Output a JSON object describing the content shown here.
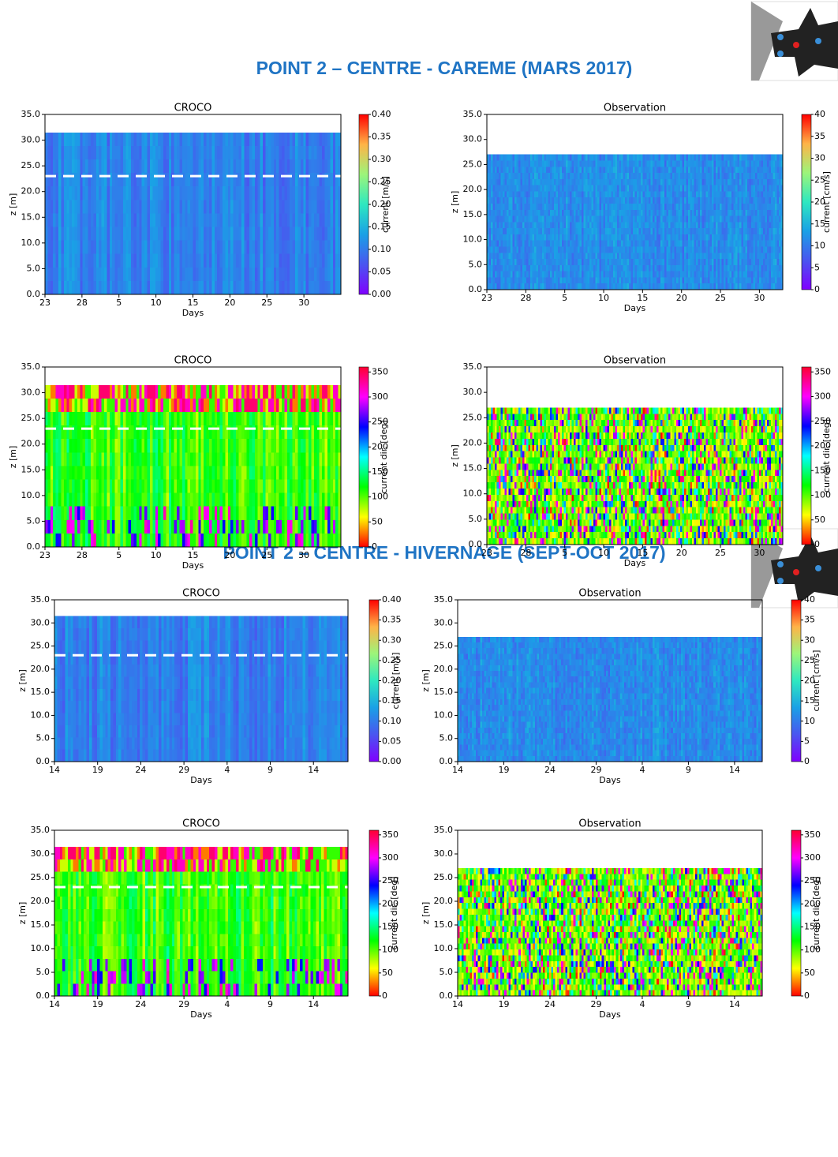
{
  "sections": [
    {
      "title": "POINT 2 – CENTRE - CAREME (MARS 2017)"
    },
    {
      "title": "POINT 2 – CENTRE - HIVERNAGE (SEPT-OCT 2017)"
    }
  ],
  "chart_data": [
    {
      "type": "heatmap",
      "title": "CROCO",
      "xlabel": "Days",
      "ylabel": "z [m]",
      "xlim": [
        0,
        40
      ],
      "xticks": [
        {
          "value": 0,
          "label": "23"
        },
        {
          "value": 5,
          "label": "28"
        },
        {
          "value": 10,
          "label": "5"
        },
        {
          "value": 15,
          "label": "10"
        },
        {
          "value": 20,
          "label": "15"
        },
        {
          "value": 25,
          "label": "20"
        },
        {
          "value": 30,
          "label": "25"
        },
        {
          "value": 35,
          "label": "30"
        }
      ],
      "ylim": [
        0,
        35
      ],
      "yticks": [
        {
          "value": 0,
          "label": "0.0"
        },
        {
          "value": 5,
          "label": "5.0"
        },
        {
          "value": 10,
          "label": "10.0"
        },
        {
          "value": 15,
          "label": "15.0"
        },
        {
          "value": 20,
          "label": "20.0"
        },
        {
          "value": 25,
          "label": "25.0"
        },
        {
          "value": 30,
          "label": "30.0"
        },
        {
          "value": 35,
          "label": "35.0"
        }
      ],
      "field_top": 31.5,
      "hline": 23,
      "colorbar_label": "current [m/s]",
      "clim": [
        0,
        0.4
      ],
      "cbar_ticks": [
        {
          "value": 0,
          "label": "0.00"
        },
        {
          "value": 0.05,
          "label": "0.05"
        },
        {
          "value": 0.1,
          "label": "0.10"
        },
        {
          "value": 0.15,
          "label": "0.15"
        },
        {
          "value": 0.2,
          "label": "0.20"
        },
        {
          "value": 0.25,
          "label": "0.25"
        },
        {
          "value": 0.3,
          "label": "0.30"
        },
        {
          "value": 0.35,
          "label": "0.35"
        },
        {
          "value": 0.4,
          "label": "0.40"
        }
      ],
      "field": "speed",
      "colormap": [
        "#8000ff",
        "#4a55f0",
        "#1aa0e6",
        "#2ee8c0",
        "#9cf57a",
        "#ffb347",
        "#ff0000"
      ]
    },
    {
      "type": "heatmap",
      "title": "Observation",
      "xlabel": "Days",
      "ylabel": "z [m]",
      "xlim": [
        0,
        38
      ],
      "xticks": [
        {
          "value": 0,
          "label": "23"
        },
        {
          "value": 5,
          "label": "28"
        },
        {
          "value": 10,
          "label": "5"
        },
        {
          "value": 15,
          "label": "10"
        },
        {
          "value": 20,
          "label": "15"
        },
        {
          "value": 25,
          "label": "20"
        },
        {
          "value": 30,
          "label": "25"
        },
        {
          "value": 35,
          "label": "30"
        }
      ],
      "ylim": [
        0,
        35
      ],
      "yticks": [
        {
          "value": 0,
          "label": "0.0"
        },
        {
          "value": 5,
          "label": "5.0"
        },
        {
          "value": 10,
          "label": "10.0"
        },
        {
          "value": 15,
          "label": "15.0"
        },
        {
          "value": 20,
          "label": "20.0"
        },
        {
          "value": 25,
          "label": "25.0"
        },
        {
          "value": 30,
          "label": "30.0"
        },
        {
          "value": 35,
          "label": "35.0"
        }
      ],
      "field_top": 27,
      "colorbar_label": "current [cm/s]",
      "clim": [
        0,
        40
      ],
      "cbar_ticks": [
        0,
        5,
        10,
        15,
        20,
        25,
        30,
        35,
        40
      ],
      "field": "speed-obs",
      "colormap": [
        "#8000ff",
        "#4a55f0",
        "#1aa0e6",
        "#2ee8c0",
        "#9cf57a",
        "#ffb347",
        "#ff0000"
      ]
    },
    {
      "type": "heatmap",
      "title": "CROCO",
      "xlabel": "Days",
      "ylabel": "z [m]",
      "xlim": [
        0,
        40
      ],
      "xticks": [
        {
          "value": 0,
          "label": "23"
        },
        {
          "value": 5,
          "label": "28"
        },
        {
          "value": 10,
          "label": "5"
        },
        {
          "value": 15,
          "label": "10"
        },
        {
          "value": 20,
          "label": "15"
        },
        {
          "value": 25,
          "label": "20"
        },
        {
          "value": 30,
          "label": "25"
        },
        {
          "value": 35,
          "label": "30"
        }
      ],
      "ylim": [
        0,
        35
      ],
      "yticks": [
        {
          "value": 0,
          "label": "0.0"
        },
        {
          "value": 5,
          "label": "5.0"
        },
        {
          "value": 10,
          "label": "10.0"
        },
        {
          "value": 15,
          "label": "15.0"
        },
        {
          "value": 20,
          "label": "20.0"
        },
        {
          "value": 25,
          "label": "25.0"
        },
        {
          "value": 30,
          "label": "30.0"
        },
        {
          "value": 35,
          "label": "35.0"
        }
      ],
      "field_top": 31.5,
      "hline": 23,
      "colorbar_label": "current dir. [deg]",
      "clim": [
        0,
        360
      ],
      "cbar_ticks": [
        0,
        50,
        100,
        150,
        200,
        250,
        300,
        350
      ],
      "field": "dir",
      "colormap": [
        "#ff0000",
        "#ffff00",
        "#00ff00",
        "#00ffff",
        "#0000ff",
        "#ff00ff",
        "#ff0030"
      ]
    },
    {
      "type": "heatmap",
      "title": "Observation",
      "xlabel": "Days",
      "ylabel": "z [m]",
      "xlim": [
        0,
        38
      ],
      "xticks": [
        {
          "value": 0,
          "label": "23"
        },
        {
          "value": 5,
          "label": "28"
        },
        {
          "value": 10,
          "label": "5"
        },
        {
          "value": 15,
          "label": "10"
        },
        {
          "value": 20,
          "label": "15"
        },
        {
          "value": 25,
          "label": "20"
        },
        {
          "value": 30,
          "label": "25"
        },
        {
          "value": 35,
          "label": "30"
        }
      ],
      "ylim": [
        0,
        35
      ],
      "yticks": [
        {
          "value": 0,
          "label": "0.0"
        },
        {
          "value": 5,
          "label": "5.0"
        },
        {
          "value": 10,
          "label": "10.0"
        },
        {
          "value": 15,
          "label": "15.0"
        },
        {
          "value": 20,
          "label": "20.0"
        },
        {
          "value": 25,
          "label": "25.0"
        },
        {
          "value": 30,
          "label": "30.0"
        },
        {
          "value": 35,
          "label": "35.0"
        }
      ],
      "field_top": 27,
      "colorbar_label": "current dir. [deg]",
      "clim": [
        0,
        360
      ],
      "cbar_ticks": [
        0,
        50,
        100,
        150,
        200,
        250,
        300,
        350
      ],
      "field": "dir-obs",
      "colormap": [
        "#ff0000",
        "#ffff00",
        "#00ff00",
        "#00ffff",
        "#0000ff",
        "#ff00ff",
        "#ff0030"
      ]
    },
    {
      "type": "heatmap",
      "title": "CROCO",
      "xlabel": "Days",
      "ylabel": "z [m]",
      "xlim": [
        0,
        34
      ],
      "xticks": [
        {
          "value": 0,
          "label": "14"
        },
        {
          "value": 5,
          "label": "19"
        },
        {
          "value": 10,
          "label": "24"
        },
        {
          "value": 15,
          "label": "29"
        },
        {
          "value": 20,
          "label": "4"
        },
        {
          "value": 25,
          "label": "9"
        },
        {
          "value": 30,
          "label": "14"
        }
      ],
      "ylim": [
        0,
        35
      ],
      "yticks": [
        {
          "value": 0,
          "label": "0.0"
        },
        {
          "value": 5,
          "label": "5.0"
        },
        {
          "value": 10,
          "label": "10.0"
        },
        {
          "value": 15,
          "label": "15.0"
        },
        {
          "value": 20,
          "label": "20.0"
        },
        {
          "value": 25,
          "label": "25.0"
        },
        {
          "value": 30,
          "label": "30.0"
        },
        {
          "value": 35,
          "label": "35.0"
        }
      ],
      "field_top": 31.5,
      "hline": 23,
      "colorbar_label": "current [m/s]",
      "clim": [
        0,
        0.4
      ],
      "cbar_ticks": [
        {
          "value": 0,
          "label": "0.00"
        },
        {
          "value": 0.05,
          "label": "0.05"
        },
        {
          "value": 0.1,
          "label": "0.10"
        },
        {
          "value": 0.15,
          "label": "0.15"
        },
        {
          "value": 0.2,
          "label": "0.20"
        },
        {
          "value": 0.25,
          "label": "0.25"
        },
        {
          "value": 0.3,
          "label": "0.30"
        },
        {
          "value": 0.35,
          "label": "0.35"
        },
        {
          "value": 0.4,
          "label": "0.40"
        }
      ],
      "field": "speed",
      "colormap": [
        "#8000ff",
        "#4a55f0",
        "#1aa0e6",
        "#2ee8c0",
        "#9cf57a",
        "#ffb347",
        "#ff0000"
      ]
    },
    {
      "type": "heatmap",
      "title": "Observation",
      "xlabel": "Days",
      "ylabel": "z [m]",
      "xlim": [
        0,
        33
      ],
      "xticks": [
        {
          "value": 0,
          "label": "14"
        },
        {
          "value": 5,
          "label": "19"
        },
        {
          "value": 10,
          "label": "24"
        },
        {
          "value": 15,
          "label": "29"
        },
        {
          "value": 20,
          "label": "4"
        },
        {
          "value": 25,
          "label": "9"
        },
        {
          "value": 30,
          "label": "14"
        }
      ],
      "ylim": [
        0,
        35
      ],
      "yticks": [
        {
          "value": 0,
          "label": "0.0"
        },
        {
          "value": 5,
          "label": "5.0"
        },
        {
          "value": 10,
          "label": "10.0"
        },
        {
          "value": 15,
          "label": "15.0"
        },
        {
          "value": 20,
          "label": "20.0"
        },
        {
          "value": 25,
          "label": "25.0"
        },
        {
          "value": 30,
          "label": "30.0"
        },
        {
          "value": 35,
          "label": "35.0"
        }
      ],
      "field_top": 27,
      "colorbar_label": "current [cm/s]",
      "clim": [
        0,
        40
      ],
      "cbar_ticks": [
        0,
        5,
        10,
        15,
        20,
        25,
        30,
        35,
        40
      ],
      "field": "speed-obs",
      "colormap": [
        "#8000ff",
        "#4a55f0",
        "#1aa0e6",
        "#2ee8c0",
        "#9cf57a",
        "#ffb347",
        "#ff0000"
      ]
    },
    {
      "type": "heatmap",
      "title": "CROCO",
      "xlabel": "Days",
      "ylabel": "z [m]",
      "xlim": [
        0,
        34
      ],
      "xticks": [
        {
          "value": 0,
          "label": "14"
        },
        {
          "value": 5,
          "label": "19"
        },
        {
          "value": 10,
          "label": "24"
        },
        {
          "value": 15,
          "label": "29"
        },
        {
          "value": 20,
          "label": "4"
        },
        {
          "value": 25,
          "label": "9"
        },
        {
          "value": 30,
          "label": "14"
        }
      ],
      "ylim": [
        0,
        35
      ],
      "yticks": [
        {
          "value": 0,
          "label": "0.0"
        },
        {
          "value": 5,
          "label": "5.0"
        },
        {
          "value": 10,
          "label": "10.0"
        },
        {
          "value": 15,
          "label": "15.0"
        },
        {
          "value": 20,
          "label": "20.0"
        },
        {
          "value": 25,
          "label": "25.0"
        },
        {
          "value": 30,
          "label": "30.0"
        },
        {
          "value": 35,
          "label": "35.0"
        }
      ],
      "field_top": 31.5,
      "hline": 23,
      "colorbar_label": "current dir. [deg]",
      "clim": [
        0,
        360
      ],
      "cbar_ticks": [
        0,
        50,
        100,
        150,
        200,
        250,
        300,
        350
      ],
      "field": "dir",
      "colormap": [
        "#ff0000",
        "#ffff00",
        "#00ff00",
        "#00ffff",
        "#0000ff",
        "#ff00ff",
        "#ff0030"
      ]
    },
    {
      "type": "heatmap",
      "title": "Observation",
      "xlabel": "Days",
      "ylabel": "z [m]",
      "xlim": [
        0,
        33
      ],
      "xticks": [
        {
          "value": 0,
          "label": "14"
        },
        {
          "value": 5,
          "label": "19"
        },
        {
          "value": 10,
          "label": "24"
        },
        {
          "value": 15,
          "label": "29"
        },
        {
          "value": 20,
          "label": "4"
        },
        {
          "value": 25,
          "label": "9"
        },
        {
          "value": 30,
          "label": "14"
        }
      ],
      "ylim": [
        0,
        35
      ],
      "yticks": [
        {
          "value": 0,
          "label": "0.0"
        },
        {
          "value": 5,
          "label": "5.0"
        },
        {
          "value": 10,
          "label": "10.0"
        },
        {
          "value": 15,
          "label": "15.0"
        },
        {
          "value": 20,
          "label": "20.0"
        },
        {
          "value": 25,
          "label": "25.0"
        },
        {
          "value": 30,
          "label": "30.0"
        },
        {
          "value": 35,
          "label": "35.0"
        }
      ],
      "field_top": 27,
      "colorbar_label": "current dir. [deg]",
      "clim": [
        0,
        360
      ],
      "cbar_ticks": [
        0,
        50,
        100,
        150,
        200,
        250,
        300,
        350
      ],
      "field": "dir-obs",
      "colormap": [
        "#ff0000",
        "#ffff00",
        "#00ff00",
        "#00ffff",
        "#0000ff",
        "#ff00ff",
        "#ff0030"
      ]
    }
  ]
}
